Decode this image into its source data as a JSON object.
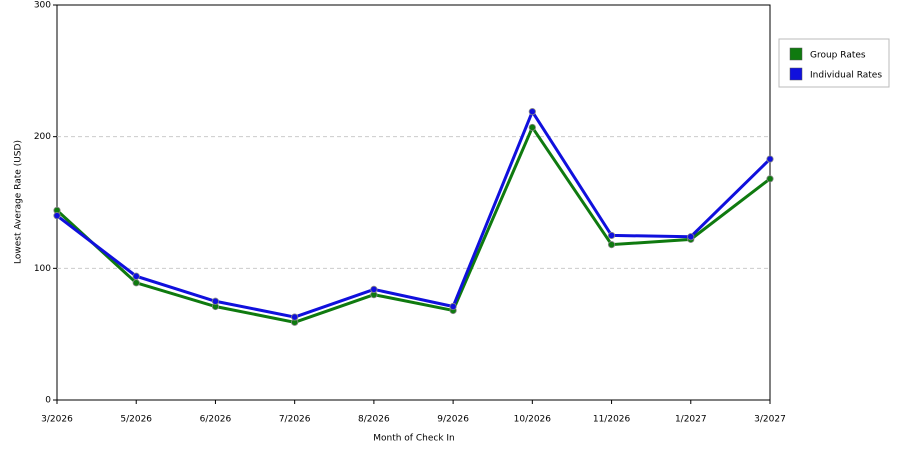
{
  "chart_data": {
    "type": "line",
    "x_label": "Month of Check In",
    "y_label": "Lowest Average Rate (USD)",
    "categories": [
      "3/2026",
      "5/2026",
      "6/2026",
      "7/2026",
      "8/2026",
      "9/2026",
      "10/2026",
      "11/2026",
      "1/2027",
      "3/2027"
    ],
    "series": [
      {
        "name": "Group Rates",
        "color": "#0f7a0f",
        "values": [
          144,
          89,
          71,
          59,
          80,
          68,
          207,
          118,
          122,
          168
        ]
      },
      {
        "name": "Individual Rates",
        "color": "#1010dd",
        "values": [
          140,
          94,
          75,
          63,
          84,
          71,
          219,
          125,
          124,
          183
        ]
      }
    ],
    "ylim": [
      0,
      300
    ],
    "yticks": [
      0,
      100,
      200,
      300
    ],
    "grid": true,
    "legend": "right"
  }
}
